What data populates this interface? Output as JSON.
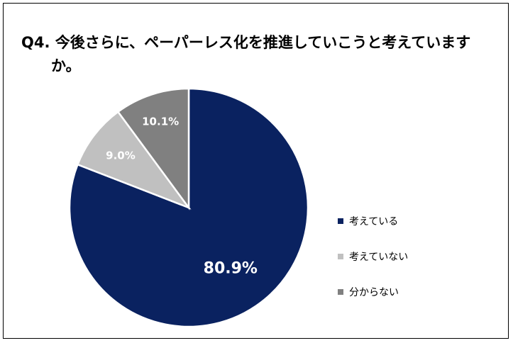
{
  "chart_data": {
    "type": "pie",
    "title": "Q4. 今後さらに、ペーパーレス化を推進していこうと考えていますか。",
    "categories": [
      "考えている",
      "考えていない",
      "分からない"
    ],
    "values": [
      80.9,
      9.0,
      10.1
    ],
    "data_labels": [
      "80.9%",
      "9.0%",
      "10.1%"
    ],
    "colors": [
      "#0a2260",
      "#c0c0c0",
      "#808080"
    ],
    "label_colors": [
      "#ffffff",
      "#ffffff",
      "#ffffff"
    ],
    "start_angle_deg": 0,
    "direction": "clockwise",
    "slice_border_color": "#ffffff",
    "legend_position": "right"
  }
}
